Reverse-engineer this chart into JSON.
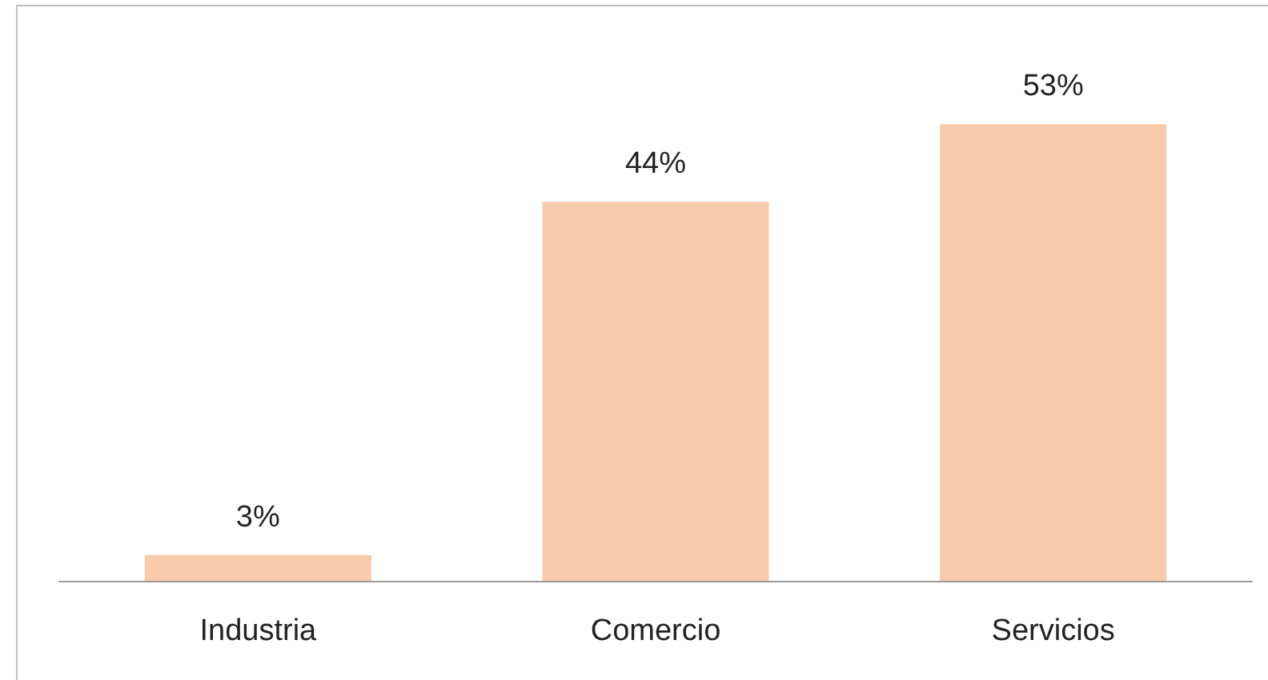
{
  "chart_data": {
    "type": "bar",
    "categories": [
      "Industria",
      "Comercio",
      "Servicios"
    ],
    "values": [
      3,
      44,
      53
    ],
    "color": "#f8cbad",
    "value_labels": [
      "3%",
      "44%",
      "53%"
    ],
    "grid": false
  }
}
